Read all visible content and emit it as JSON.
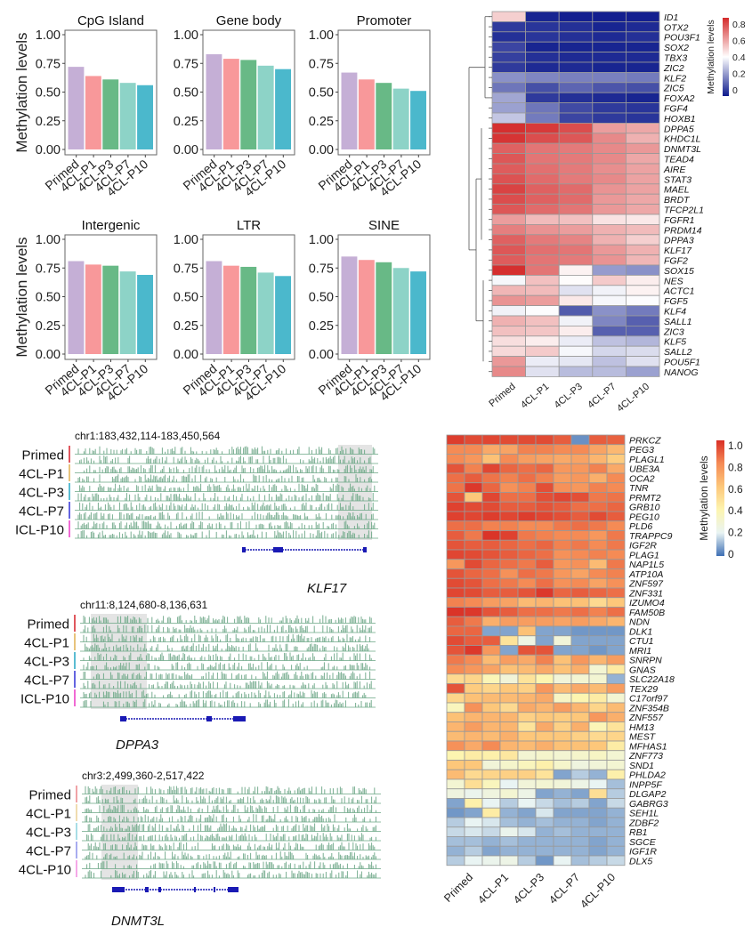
{
  "samples": [
    "Primed",
    "4CL-P1",
    "4CL-P3",
    "4CL-P7",
    "4CL-P10"
  ],
  "sample_colors": [
    "#c5afd6",
    "#f8989a",
    "#68b986",
    "#8dd3c7",
    "#4bb8cc"
  ],
  "chart_data": [
    {
      "type": "bar",
      "panel": "bar-grid",
      "ylabel": "Methylation levels",
      "ylim": [
        0,
        1
      ],
      "yticks": [
        "0.00",
        "0.25",
        "0.50",
        "0.75",
        "1.00"
      ],
      "categories": [
        "Primed",
        "4CL-P1",
        "4CL-P3",
        "4CL-P7",
        "4CL-P10"
      ],
      "subplots": [
        {
          "title": "CpG Island",
          "values": [
            0.72,
            0.64,
            0.61,
            0.58,
            0.56
          ]
        },
        {
          "title": "Gene body",
          "values": [
            0.83,
            0.79,
            0.78,
            0.73,
            0.7
          ]
        },
        {
          "title": "Promoter",
          "values": [
            0.67,
            0.61,
            0.58,
            0.53,
            0.51
          ]
        },
        {
          "title": "Intergenic",
          "values": [
            0.81,
            0.78,
            0.77,
            0.72,
            0.69
          ]
        },
        {
          "title": "LTR",
          "values": [
            0.81,
            0.77,
            0.76,
            0.71,
            0.68
          ]
        },
        {
          "title": "SINE",
          "values": [
            0.85,
            0.82,
            0.8,
            0.75,
            0.72
          ]
        }
      ]
    },
    {
      "type": "heatmap",
      "panel": "pluripotency-heatmap",
      "legend_title": "Methylation levels",
      "legend_ticks": [
        "0",
        "0.2",
        "0.4",
        "0.6",
        "0.8"
      ],
      "value_range": [
        0,
        0.85
      ],
      "colormap": [
        "#0d1a8c",
        "#ffffff",
        "#d42a2a"
      ],
      "columns": [
        "Primed",
        "4CL-P1",
        "4CL-P3",
        "4CL-P7",
        "4CL-P10"
      ],
      "rows": [
        "ID1",
        "OTX2",
        "POU3F1",
        "SOX2",
        "TBX3",
        "ZIC2",
        "KLF2",
        "ZIC5",
        "FOXA2",
        "FGF4",
        "HOXB1",
        "DPPA5",
        "KHDC1L",
        "DNMT3L",
        "TEAD4",
        "AIRE",
        "STAT3",
        "MAEL",
        "BRDT",
        "TFCP2L1",
        "FGFR1",
        "PRDM14",
        "DPPA3",
        "KLF17",
        "FGF2",
        "SOX15",
        "NES",
        "ACTC1",
        "FGF5",
        "KLF4",
        "SALL1",
        "ZIC3",
        "KLF5",
        "SALL2",
        "POU5F1",
        "NANOG"
      ],
      "values": [
        [
          0.52,
          0.02,
          0.01,
          0.01,
          0.01
        ],
        [
          0.06,
          0.05,
          0.04,
          0.02,
          0.03
        ],
        [
          0.04,
          0.05,
          0.04,
          0.03,
          0.04
        ],
        [
          0.08,
          0.02,
          0.02,
          0.02,
          0.02
        ],
        [
          0.07,
          0.04,
          0.03,
          0.03,
          0.03
        ],
        [
          0.06,
          0.03,
          0.03,
          0.02,
          0.02
        ],
        [
          0.22,
          0.2,
          0.19,
          0.19,
          0.18
        ],
        [
          0.17,
          0.1,
          0.14,
          0.11,
          0.1
        ],
        [
          0.26,
          0.06,
          0.04,
          0.03,
          0.02
        ],
        [
          0.25,
          0.17,
          0.09,
          0.06,
          0.05
        ],
        [
          0.32,
          0.18,
          0.08,
          0.06,
          0.05
        ],
        [
          0.84,
          0.82,
          0.78,
          0.62,
          0.6
        ],
        [
          0.83,
          0.78,
          0.76,
          0.66,
          0.58
        ],
        [
          0.74,
          0.7,
          0.69,
          0.66,
          0.63
        ],
        [
          0.76,
          0.7,
          0.69,
          0.66,
          0.6
        ],
        [
          0.75,
          0.71,
          0.69,
          0.65,
          0.61
        ],
        [
          0.77,
          0.72,
          0.69,
          0.66,
          0.61
        ],
        [
          0.8,
          0.74,
          0.72,
          0.64,
          0.61
        ],
        [
          0.78,
          0.74,
          0.72,
          0.63,
          0.6
        ],
        [
          0.76,
          0.72,
          0.7,
          0.63,
          0.6
        ],
        [
          0.62,
          0.56,
          0.55,
          0.48,
          0.47
        ],
        [
          0.68,
          0.64,
          0.62,
          0.58,
          0.56
        ],
        [
          0.74,
          0.69,
          0.67,
          0.58,
          0.52
        ],
        [
          0.76,
          0.71,
          0.7,
          0.63,
          0.58
        ],
        [
          0.75,
          0.7,
          0.69,
          0.64,
          0.57
        ],
        [
          0.84,
          0.7,
          0.45,
          0.24,
          0.22
        ],
        [
          0.41,
          0.55,
          0.43,
          0.53,
          0.46
        ],
        [
          0.57,
          0.56,
          0.37,
          0.4,
          0.45
        ],
        [
          0.64,
          0.62,
          0.47,
          0.41,
          0.42
        ],
        [
          0.4,
          0.42,
          0.12,
          0.22,
          0.18
        ],
        [
          0.58,
          0.55,
          0.4,
          0.2,
          0.13
        ],
        [
          0.55,
          0.54,
          0.46,
          0.13,
          0.13
        ],
        [
          0.49,
          0.46,
          0.39,
          0.31,
          0.29
        ],
        [
          0.5,
          0.53,
          0.41,
          0.35,
          0.36
        ],
        [
          0.63,
          0.39,
          0.38,
          0.31,
          0.37
        ],
        [
          0.66,
          0.37,
          0.3,
          0.3,
          0.25
        ]
      ]
    },
    {
      "type": "heatmap",
      "panel": "imprinting-heatmap",
      "legend_title": "Methylation levels",
      "legend_ticks": [
        "0",
        "0.2",
        "0.4",
        "0.6",
        "0.8",
        "1.0"
      ],
      "value_range": [
        0,
        1
      ],
      "colormap": [
        "#3e6fb4",
        "#e9f4f3",
        "#fdf5b0",
        "#fdc77a",
        "#f58b55",
        "#d92f26"
      ],
      "columns": [
        "Primed",
        "4CL-P1",
        "4CL-P3",
        "4CL-P7",
        "4CL-P10"
      ],
      "replicates_per_column": 2,
      "rows": [
        "PRKCZ",
        "PEG3",
        "PLAGL1",
        "UBE3A",
        "OCA2",
        "TNR",
        "PRMT2",
        "GRB10",
        "PEG10",
        "PLD6",
        "TRAPPC9",
        "IGF2R",
        "PLAG1",
        "NAP1L5",
        "ATP10A",
        "ZNF597",
        "ZNF331",
        "IZUMO4",
        "FAM50B",
        "NDN",
        "DLK1",
        "CTU1",
        "MRI1",
        "SNRPN",
        "GNAS",
        "SLC22A18",
        "TEX29",
        "C17orf97",
        "ZNF354B",
        "ZNF557",
        "HM13",
        "MEST",
        "MFHAS1",
        "ZNF773",
        "SND1",
        "PHLDA2",
        "INPP5F",
        "DLGAP2",
        "GABRG3",
        "SEH1L",
        "ZDBF2",
        "RB1",
        "SGCE",
        "IGF1R",
        "DLX5"
      ],
      "values": [
        [
          0.97,
          0.94,
          0.95,
          0.94,
          0.94,
          0.94,
          0.9,
          0.05,
          0.9,
          0.89
        ],
        [
          0.8,
          0.8,
          0.7,
          0.72,
          0.82,
          0.82,
          0.8,
          0.8,
          0.72,
          0.65
        ],
        [
          0.8,
          0.76,
          0.62,
          0.8,
          0.74,
          0.72,
          0.7,
          0.72,
          0.66,
          0.58
        ],
        [
          0.92,
          0.82,
          0.95,
          0.88,
          0.86,
          0.88,
          0.76,
          0.76,
          0.82,
          0.7
        ],
        [
          0.86,
          0.9,
          0.85,
          0.82,
          0.86,
          0.82,
          0.74,
          0.76,
          0.68,
          0.8
        ],
        [
          0.85,
          0.98,
          0.88,
          0.78,
          0.82,
          0.93,
          0.78,
          0.76,
          0.82,
          0.8
        ],
        [
          0.92,
          0.6,
          0.95,
          0.86,
          0.86,
          0.93,
          0.95,
          0.93,
          0.84,
          0.85
        ],
        [
          0.96,
          0.94,
          0.94,
          0.9,
          0.9,
          0.92,
          0.9,
          0.86,
          0.86,
          0.88
        ],
        [
          0.96,
          0.95,
          0.97,
          0.95,
          0.97,
          0.95,
          0.93,
          0.9,
          0.94,
          0.9
        ],
        [
          0.86,
          0.86,
          0.82,
          0.82,
          0.8,
          0.8,
          0.84,
          0.86,
          0.84,
          0.8
        ],
        [
          0.9,
          0.84,
          0.99,
          0.96,
          0.84,
          0.82,
          0.8,
          0.8,
          0.76,
          0.84
        ],
        [
          0.92,
          0.9,
          0.9,
          0.88,
          0.86,
          0.88,
          0.82,
          0.84,
          0.8,
          0.84
        ],
        [
          0.95,
          0.94,
          0.92,
          0.9,
          0.88,
          0.86,
          0.78,
          0.8,
          0.82,
          0.8
        ],
        [
          0.76,
          0.94,
          0.88,
          0.86,
          0.84,
          0.9,
          0.76,
          0.78,
          0.64,
          0.84
        ],
        [
          0.92,
          0.88,
          0.86,
          0.78,
          0.86,
          0.84,
          0.76,
          0.72,
          0.8,
          0.82
        ],
        [
          0.94,
          0.92,
          0.86,
          0.84,
          0.8,
          0.86,
          0.78,
          0.8,
          0.72,
          0.78
        ],
        [
          0.95,
          0.94,
          0.9,
          0.9,
          0.92,
          0.98,
          0.88,
          0.9,
          0.88,
          0.86
        ],
        [
          0.82,
          0.8,
          0.74,
          0.72,
          0.64,
          0.66,
          0.62,
          0.62,
          0.52,
          0.6
        ],
        [
          0.99,
          0.98,
          0.92,
          0.9,
          0.86,
          0.86,
          0.84,
          0.86,
          0.82,
          0.86
        ],
        [
          0.9,
          0.84,
          0.68,
          0.74,
          0.74,
          0.74,
          0.72,
          0.74,
          0.7,
          0.66
        ],
        [
          0.88,
          0.88,
          0.08,
          0.08,
          0.62,
          0.08,
          0.08,
          0.06,
          0.06,
          0.06
        ],
        [
          0.94,
          0.9,
          0.9,
          0.48,
          0.25,
          0.08,
          0.28,
          0.08,
          0.08,
          0.08
        ],
        [
          0.92,
          0.98,
          0.76,
          0.08,
          0.92,
          0.92,
          0.08,
          0.08,
          0.06,
          0.08
        ],
        [
          0.84,
          0.8,
          0.64,
          0.74,
          0.7,
          0.82,
          0.62,
          0.76,
          0.66,
          0.74
        ],
        [
          0.8,
          0.76,
          0.72,
          0.62,
          0.64,
          0.7,
          0.62,
          0.68,
          0.3,
          0.45
        ],
        [
          0.52,
          0.54,
          0.38,
          0.28,
          0.48,
          0.4,
          0.28,
          0.3,
          0.3,
          0.1
        ],
        [
          0.92,
          0.58,
          0.54,
          0.6,
          0.56,
          0.76,
          0.64,
          0.7,
          0.64,
          0.74
        ],
        [
          0.54,
          0.62,
          0.64,
          0.64,
          0.66,
          0.7,
          0.34,
          0.4,
          0.44,
          0.3
        ],
        [
          0.36,
          0.78,
          0.6,
          0.52,
          0.7,
          0.66,
          0.74,
          0.66,
          0.54,
          0.64
        ],
        [
          0.62,
          0.66,
          0.66,
          0.66,
          0.56,
          0.6,
          0.58,
          0.6,
          0.76,
          0.68
        ],
        [
          0.66,
          0.74,
          0.66,
          0.66,
          0.48,
          0.7,
          0.56,
          0.68,
          0.38,
          0.48
        ],
        [
          0.64,
          0.66,
          0.64,
          0.68,
          0.6,
          0.6,
          0.6,
          0.56,
          0.52,
          0.54
        ],
        [
          0.78,
          0.7,
          0.8,
          0.66,
          0.64,
          0.68,
          0.62,
          0.62,
          0.6,
          0.44
        ],
        [
          0.4,
          0.44,
          0.42,
          0.46,
          0.3,
          0.32,
          0.3,
          0.32,
          0.34,
          0.3
        ],
        [
          0.6,
          0.6,
          0.28,
          0.32,
          0.36,
          0.42,
          0.32,
          0.26,
          0.28,
          0.3
        ],
        [
          0.64,
          0.52,
          0.54,
          0.56,
          0.56,
          0.48,
          0.08,
          0.14,
          0.1,
          0.42
        ],
        [
          0.3,
          0.5,
          0.36,
          0.2,
          0.28,
          0.3,
          0.28,
          0.24,
          0.2,
          0.12
        ],
        [
          0.26,
          0.22,
          0.26,
          0.3,
          0.24,
          0.08,
          0.1,
          0.08,
          0.5,
          0.14
        ],
        [
          0.08,
          0.42,
          0.2,
          0.14,
          0.2,
          0.16,
          0.12,
          0.14,
          0.08,
          0.16
        ],
        [
          0.06,
          0.08,
          0.44,
          0.1,
          0.08,
          0.18,
          0.08,
          0.08,
          0.08,
          0.1
        ],
        [
          0.14,
          0.2,
          0.18,
          0.12,
          0.1,
          0.12,
          0.1,
          0.1,
          0.08,
          0.1
        ],
        [
          0.16,
          0.18,
          0.16,
          0.22,
          0.18,
          0.1,
          0.12,
          0.1,
          0.1,
          0.1
        ],
        [
          0.12,
          0.12,
          0.1,
          0.12,
          0.1,
          0.1,
          0.1,
          0.1,
          0.08,
          0.1
        ],
        [
          0.1,
          0.14,
          0.08,
          0.1,
          0.1,
          0.1,
          0.1,
          0.1,
          0.08,
          0.1
        ],
        [
          0.14,
          0.2,
          0.22,
          0.24,
          0.14,
          0.06,
          0.2,
          0.12,
          0.14,
          0.16
        ]
      ]
    }
  ],
  "genome_tracks": [
    {
      "locus": "chr1:183,432,114-183,450,564",
      "gene": "KLF17",
      "gene_strand": "+"
    },
    {
      "locus": "chr11:8,124,680-8,136,631",
      "gene": "DPPA3",
      "gene_strand": "-"
    },
    {
      "locus": "chr3:2,499,360-2,517,422",
      "gene": "DNMT3L",
      "gene_strand": "+"
    }
  ],
  "track_sample_labels_first_two": [
    "Primed",
    "4CL-P1",
    "4CL-P3",
    "4CL-P7",
    "ICL-P10"
  ],
  "track_sample_labels_last": [
    "Primed",
    "4CL-P1",
    "4CL-P3",
    "4CL-P7",
    "4CL-P10"
  ],
  "track_bar_colors": [
    "#e0575e",
    "#e8c37c",
    "#5bbcd2",
    "#6464e0",
    "#f06ad4"
  ],
  "track_bar_colors_last": [
    "#f0a3a7",
    "#f0dcb0",
    "#a8dde6",
    "#a8acf0",
    "#f5a8e8"
  ],
  "signal_color": "#6aa684"
}
